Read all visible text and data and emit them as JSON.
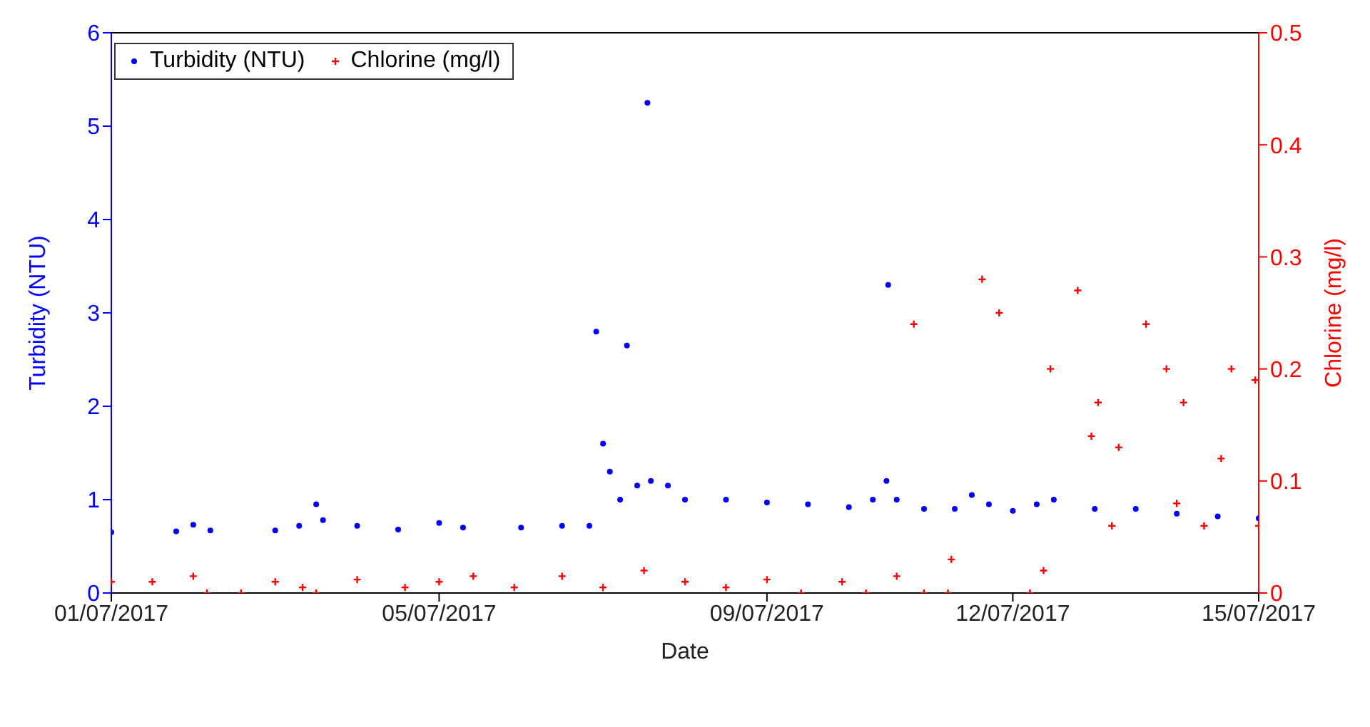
{
  "chart_data": {
    "type": "scatter",
    "xlabel": "Date",
    "ylabel": "Turbidity (NTU)",
    "y2label": "Chlorine (mg/l)",
    "legend": "top left",
    "xlim": [
      "2017-07-01",
      "2017-07-15"
    ],
    "xticks": [
      {
        "value": "2017-07-01",
        "label": "01/07/2017"
      },
      {
        "value": "2017-07-05",
        "label": "05/07/2017"
      },
      {
        "value": "2017-07-09",
        "label": "09/07/2017"
      },
      {
        "value": "2017-07-12",
        "label": "12/07/2017"
      },
      {
        "value": "2017-07-15",
        "label": "15/07/2017"
      }
    ],
    "ylim": [
      0,
      6
    ],
    "yticks": [
      0,
      1,
      2,
      3,
      4,
      5,
      6
    ],
    "y2lim": [
      0,
      0.5
    ],
    "y2ticks": [
      0,
      0.1,
      0.2,
      0.3,
      0.4,
      0.5
    ],
    "series": [
      {
        "name": "Turbidity (NTU)",
        "color": "#0000ff",
        "marker": "circle",
        "x": [
          "2017-07-01T00:00",
          "2017-07-01T19:00",
          "2017-07-02T00:00",
          "2017-07-02T05:00",
          "2017-07-03T00:00",
          "2017-07-03T07:00",
          "2017-07-03T12:00",
          "2017-07-03T14:00",
          "2017-07-04T00:00",
          "2017-07-04T12:00",
          "2017-07-05T00:00",
          "2017-07-05T07:00",
          "2017-07-06T00:00",
          "2017-07-06T12:00",
          "2017-07-06T20:00",
          "2017-07-06T22:00",
          "2017-07-07T00:00",
          "2017-07-07T02:00",
          "2017-07-07T05:00",
          "2017-07-07T07:00",
          "2017-07-07T10:00",
          "2017-07-07T13:00",
          "2017-07-07T14:00",
          "2017-07-07T19:00",
          "2017-07-08T00:00",
          "2017-07-08T12:00",
          "2017-07-09T00:00",
          "2017-07-09T12:00",
          "2017-07-10T00:00",
          "2017-07-10T07:00",
          "2017-07-10T11:00",
          "2017-07-10T11:30",
          "2017-07-10T14:00",
          "2017-07-10T22:00",
          "2017-07-11T07:00",
          "2017-07-11T12:00",
          "2017-07-11T17:00",
          "2017-07-12T00:00",
          "2017-07-12T07:00",
          "2017-07-12T12:00",
          "2017-07-13T00:00",
          "2017-07-13T12:00",
          "2017-07-14T00:00",
          "2017-07-14T12:00",
          "2017-07-15T00:00"
        ],
        "values": [
          0.65,
          0.66,
          0.73,
          0.67,
          0.67,
          0.72,
          0.95,
          0.78,
          0.72,
          0.68,
          0.75,
          0.7,
          0.7,
          0.72,
          0.72,
          2.8,
          1.6,
          1.3,
          1.0,
          2.65,
          1.15,
          5.25,
          1.2,
          1.15,
          1.0,
          1.0,
          0.97,
          0.95,
          0.92,
          1.0,
          1.2,
          3.3,
          1.0,
          0.9,
          0.9,
          1.05,
          0.95,
          0.88,
          0.95,
          1.0,
          0.9,
          0.9,
          0.85,
          0.82,
          0.8
        ]
      },
      {
        "name": "Chlorine (mg/l)",
        "color": "#ff0000",
        "marker": "cross",
        "axis": "y2",
        "x": [
          "2017-07-01T00:00",
          "2017-07-01T12:00",
          "2017-07-02T00:00",
          "2017-07-02T04:00",
          "2017-07-02T14:00",
          "2017-07-03T00:00",
          "2017-07-03T08:00",
          "2017-07-03T12:00",
          "2017-07-04T00:00",
          "2017-07-04T14:00",
          "2017-07-05T00:00",
          "2017-07-05T10:00",
          "2017-07-05T22:00",
          "2017-07-06T12:00",
          "2017-07-07T00:00",
          "2017-07-07T12:00",
          "2017-07-08T00:00",
          "2017-07-08T12:00",
          "2017-07-09T00:00",
          "2017-07-09T10:00",
          "2017-07-09T22:00",
          "2017-07-10T05:00",
          "2017-07-10T14:00",
          "2017-07-10T19:00",
          "2017-07-10T22:00",
          "2017-07-11T05:00",
          "2017-07-11T06:00",
          "2017-07-11T15:00",
          "2017-07-11T20:00",
          "2017-07-12T05:00",
          "2017-07-12T09:00",
          "2017-07-12T11:00",
          "2017-07-12T19:00",
          "2017-07-12T23:00",
          "2017-07-13T01:00",
          "2017-07-13T05:00",
          "2017-07-13T07:00",
          "2017-07-13T15:00",
          "2017-07-13T21:00",
          "2017-07-14T00:00",
          "2017-07-14T02:00",
          "2017-07-14T08:00",
          "2017-07-14T13:00",
          "2017-07-14T16:00",
          "2017-07-14T23:00",
          "2017-07-15T00:00"
        ],
        "values": [
          0.01,
          0.01,
          0.015,
          0.0,
          0.0,
          0.01,
          0.005,
          0.0,
          0.012,
          0.005,
          0.01,
          0.015,
          0.005,
          0.015,
          0.005,
          0.02,
          0.01,
          0.005,
          0.012,
          0.0,
          0.01,
          0.0,
          0.015,
          0.24,
          0.0,
          0.0,
          0.03,
          0.28,
          0.25,
          0.0,
          0.02,
          0.2,
          0.27,
          0.14,
          0.17,
          0.06,
          0.13,
          0.24,
          0.2,
          0.08,
          0.17,
          0.06,
          0.12,
          0.2,
          0.19,
          0.06
        ]
      }
    ]
  }
}
